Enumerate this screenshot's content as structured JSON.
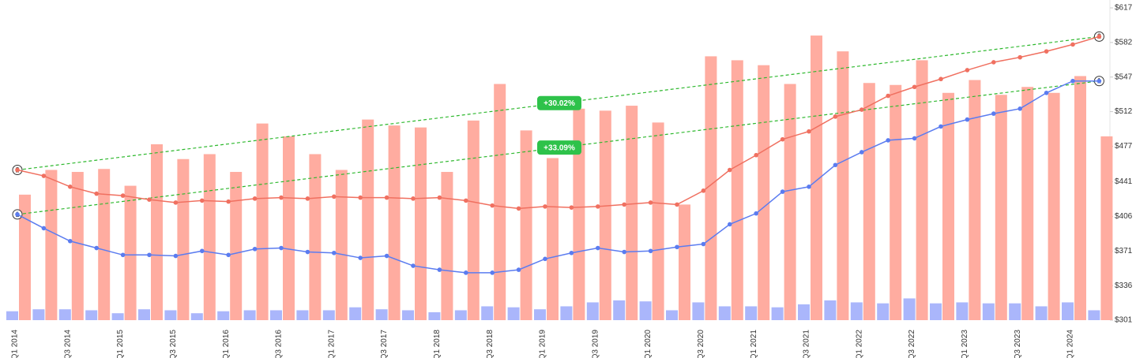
{
  "chart_data": {
    "type": "bar",
    "categories": [
      "Q1 2014",
      null,
      "Q3 2014",
      null,
      "Q1 2015",
      null,
      "Q3 2015",
      null,
      "Q1 2016",
      null,
      "Q3 2016",
      null,
      "Q1 2017",
      null,
      "Q3 2017",
      null,
      "Q1 2018",
      null,
      "Q3 2018",
      null,
      "Q1 2019",
      null,
      "Q3 2019",
      null,
      "Q1 2020",
      null,
      "Q3 2020",
      null,
      "Q1 2021",
      null,
      "Q3 2021",
      null,
      "Q1 2022",
      null,
      "Q3 2022",
      null,
      "Q1 2023",
      null,
      "Q3 2023",
      null,
      "Q1 2024",
      null
    ],
    "series": [
      {
        "type": "bar",
        "color": "#aab6fb",
        "values": [
          310,
          312,
          312,
          311,
          308,
          312,
          311,
          308,
          310,
          311,
          311,
          311,
          311,
          314,
          312,
          311,
          309,
          311,
          315,
          314,
          312,
          315,
          319,
          321,
          320,
          311,
          319,
          315,
          315,
          314,
          317,
          321,
          319,
          318,
          323,
          318,
          319,
          318,
          318,
          315,
          319,
          311
        ]
      },
      {
        "type": "bar",
        "color": "#ffaca0",
        "values": [
          428,
          453,
          451,
          454,
          437,
          479,
          464,
          469,
          451,
          500,
          487,
          469,
          453,
          504,
          498,
          496,
          451,
          503,
          540,
          493,
          465,
          515,
          513,
          518,
          501,
          418,
          568,
          564,
          559,
          540,
          589,
          573,
          541,
          539,
          564,
          531,
          544,
          529,
          537,
          531,
          548,
          487
        ]
      },
      {
        "type": "line",
        "color": "#f07060",
        "values": [
          453,
          447,
          436,
          429,
          427,
          423,
          420,
          422,
          421,
          424,
          425,
          424,
          426,
          425,
          425,
          424,
          425,
          422,
          417,
          414,
          416,
          415,
          416,
          418,
          420,
          418,
          432,
          453,
          468,
          484,
          492,
          507,
          514,
          528,
          537,
          545,
          554,
          562,
          567,
          573,
          580,
          588
        ]
      },
      {
        "type": "line",
        "color": "#5b7cf0",
        "values": [
          408,
          394,
          381,
          374,
          367,
          367,
          366,
          371,
          367,
          373,
          374,
          370,
          369,
          364,
          366,
          356,
          352,
          349,
          349,
          352,
          363,
          369,
          374,
          370,
          371,
          375,
          378,
          398,
          409,
          431,
          436,
          458,
          471,
          483,
          485,
          497,
          504,
          510,
          515,
          531,
          543,
          543
        ]
      }
    ],
    "trendlines": [
      {
        "marker": "2",
        "start": 453,
        "end": 588,
        "change": "+30.02%",
        "color": "#2db82d"
      },
      {
        "marker": "1",
        "start": 408,
        "end": 543,
        "change": "+33.09%",
        "color": "#2db82d"
      }
    ],
    "ylim": [
      301,
      617
    ],
    "yticks": [
      {
        "value": 301,
        "label": "$301"
      },
      {
        "value": 336,
        "label": "$336"
      },
      {
        "value": 371,
        "label": "$371"
      },
      {
        "value": 406,
        "label": "$406"
      },
      {
        "value": 441,
        "label": "$441"
      },
      {
        "value": 477,
        "label": "$477"
      },
      {
        "value": 512,
        "label": "$512"
      },
      {
        "value": 547,
        "label": "$547"
      },
      {
        "value": 582,
        "label": "$582"
      },
      {
        "value": 617,
        "label": "$617"
      }
    ]
  }
}
